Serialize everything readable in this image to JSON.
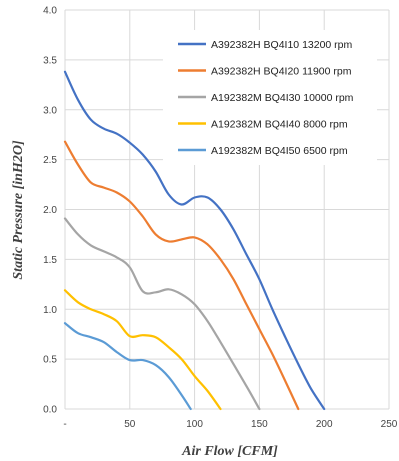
{
  "chart_data": {
    "type": "line",
    "xlabel": "Air Flow [CFM]",
    "ylabel": "Static Pressure [inH2O]",
    "xlim": [
      0,
      250
    ],
    "ylim": [
      0,
      4
    ],
    "x_ticks": [
      "-",
      "50",
      "100",
      "150",
      "200",
      "250"
    ],
    "y_ticks": [
      "0.0",
      "0.5",
      "1.0",
      "1.5",
      "2.0",
      "2.5",
      "3.0",
      "3.5",
      "4.0"
    ],
    "grid": true,
    "legend_position": "top-right",
    "series": [
      {
        "name": "A392382H BQ4I10 13200 rpm",
        "color": "#4472C4",
        "points": [
          [
            0,
            3.38
          ],
          [
            10,
            3.1
          ],
          [
            20,
            2.9
          ],
          [
            30,
            2.81
          ],
          [
            40,
            2.76
          ],
          [
            50,
            2.67
          ],
          [
            60,
            2.55
          ],
          [
            70,
            2.38
          ],
          [
            80,
            2.15
          ],
          [
            90,
            2.05
          ],
          [
            100,
            2.12
          ],
          [
            110,
            2.12
          ],
          [
            120,
            2.0
          ],
          [
            130,
            1.8
          ],
          [
            140,
            1.55
          ],
          [
            150,
            1.3
          ],
          [
            160,
            1.0
          ],
          [
            170,
            0.72
          ],
          [
            180,
            0.45
          ],
          [
            190,
            0.2
          ],
          [
            200,
            0.0
          ]
        ]
      },
      {
        "name": "A392382H BQ4I20 11900 rpm",
        "color": "#ED7D31",
        "points": [
          [
            0,
            2.68
          ],
          [
            10,
            2.45
          ],
          [
            20,
            2.27
          ],
          [
            30,
            2.22
          ],
          [
            40,
            2.17
          ],
          [
            50,
            2.08
          ],
          [
            60,
            1.93
          ],
          [
            70,
            1.75
          ],
          [
            80,
            1.68
          ],
          [
            90,
            1.7
          ],
          [
            100,
            1.72
          ],
          [
            110,
            1.65
          ],
          [
            120,
            1.5
          ],
          [
            130,
            1.3
          ],
          [
            140,
            1.05
          ],
          [
            150,
            0.8
          ],
          [
            160,
            0.55
          ],
          [
            170,
            0.28
          ],
          [
            180,
            0.0
          ]
        ]
      },
      {
        "name": "A192382M BQ4I30 10000 rpm",
        "color": "#A5A5A5",
        "points": [
          [
            0,
            1.91
          ],
          [
            10,
            1.75
          ],
          [
            20,
            1.64
          ],
          [
            30,
            1.58
          ],
          [
            40,
            1.52
          ],
          [
            50,
            1.42
          ],
          [
            60,
            1.18
          ],
          [
            70,
            1.17
          ],
          [
            80,
            1.2
          ],
          [
            90,
            1.15
          ],
          [
            100,
            1.05
          ],
          [
            110,
            0.88
          ],
          [
            120,
            0.67
          ],
          [
            130,
            0.45
          ],
          [
            140,
            0.23
          ],
          [
            150,
            0.0
          ]
        ]
      },
      {
        "name": "A192382M BQ4I40 8000 rpm",
        "color": "#FFC000",
        "points": [
          [
            0,
            1.19
          ],
          [
            10,
            1.07
          ],
          [
            20,
            1.0
          ],
          [
            30,
            0.95
          ],
          [
            40,
            0.88
          ],
          [
            50,
            0.73
          ],
          [
            60,
            0.74
          ],
          [
            70,
            0.72
          ],
          [
            80,
            0.62
          ],
          [
            90,
            0.5
          ],
          [
            100,
            0.33
          ],
          [
            110,
            0.18
          ],
          [
            120,
            0.0
          ]
        ]
      },
      {
        "name": "A192382M BQ4I50 6500 rpm",
        "color": "#5B9BD5",
        "points": [
          [
            0,
            0.86
          ],
          [
            10,
            0.76
          ],
          [
            20,
            0.72
          ],
          [
            30,
            0.67
          ],
          [
            40,
            0.57
          ],
          [
            50,
            0.49
          ],
          [
            60,
            0.49
          ],
          [
            70,
            0.44
          ],
          [
            80,
            0.32
          ],
          [
            90,
            0.14
          ],
          [
            97,
            0.0
          ]
        ]
      }
    ]
  }
}
